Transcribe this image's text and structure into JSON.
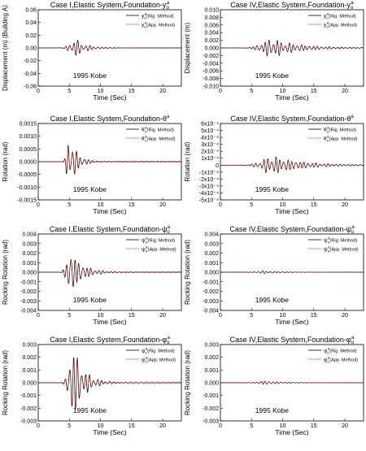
{
  "chart_data": [
    {
      "type": "line",
      "title": "Case I,Elastic System,Foundation-y",
      "title_sym": "o",
      "title_sup": "a",
      "xlabel": "Time (Sec)",
      "ylabel": "Displacement (m) (Building A)",
      "xlim": [
        0,
        23
      ],
      "ylim": [
        -0.06,
        0.06
      ],
      "xticks": [
        0,
        5,
        10,
        15,
        20
      ],
      "yticks": [
        -0.06,
        -0.04,
        -0.02,
        0.0,
        0.02,
        0.04,
        0.06
      ],
      "ytick_labels": [
        "-0.06",
        "-0.04",
        "-0.02",
        "0.00",
        "0.02",
        "0.04",
        "0.06"
      ],
      "annotation": "1995 Kobe",
      "legend": "top-right",
      "series": [
        {
          "name": "y",
          "sub": "(Rig. Method)",
          "style": "solid",
          "color": "#000000"
        },
        {
          "name": "y",
          "sub": "(App. Method)",
          "style": "dotted",
          "color": "#cc0000"
        }
      ],
      "approx_signal": {
        "onset": 3.5,
        "peak_time": 5.8,
        "peak": 0.012,
        "decay": 0.55
      }
    },
    {
      "type": "line",
      "title": "Case IV,Elastic System,Foundation-y",
      "title_sym": "o",
      "title_sup": "a",
      "xlabel": "Time (Sec)",
      "ylabel": "Displacement (m)",
      "xlim": [
        0,
        23
      ],
      "ylim": [
        -0.01,
        0.01
      ],
      "xticks": [
        0,
        5,
        10,
        15,
        20
      ],
      "yticks": [
        -0.01,
        -0.008,
        -0.006,
        -0.004,
        -0.002,
        0.0,
        0.002,
        0.004,
        0.006,
        0.008,
        0.01
      ],
      "ytick_labels": [
        "-0.010",
        "-0.008",
        "-0.006",
        "-0.004",
        "-0.002",
        "0.000",
        "0.002",
        "0.004",
        "0.006",
        "0.008",
        "0.010"
      ],
      "annotation": "1995 Kobe",
      "legend": "top-right",
      "series": [
        {
          "name": "y",
          "sub": "(Rig. Method)",
          "style": "solid",
          "color": "#000000"
        },
        {
          "name": "y",
          "sub": "(App. Method)",
          "style": "dotted",
          "color": "#cc0000"
        }
      ],
      "approx_signal": {
        "onset": 3.5,
        "peak_time": 8.0,
        "peak": 0.0021,
        "decay": 0.22
      }
    },
    {
      "type": "line",
      "title": "Case I,Elastic System,Foundation-θ",
      "title_sym": "",
      "title_sup": "a",
      "xlabel": "Time (Sec)",
      "ylabel": "Rotation (rad)",
      "xlim": [
        0,
        23
      ],
      "ylim": [
        -0.0015,
        0.0015
      ],
      "xticks": [
        0,
        5,
        10,
        15,
        20
      ],
      "yticks": [
        -0.0015,
        -0.001,
        -0.0005,
        0.0,
        0.0005,
        0.001,
        0.0015
      ],
      "ytick_labels": [
        "-0.0015",
        "-0.0010",
        "-0.0005",
        "0.0000",
        "0.0005",
        "0.0010",
        "0.0015"
      ],
      "annotation": "1995 Kobe",
      "legend": "top-right",
      "series": [
        {
          "name": "θ",
          "sub": "(Rig. Method)",
          "style": "solid",
          "color": "#000000"
        },
        {
          "name": "θ",
          "sub": "(App. Method)",
          "style": "dotted",
          "color": "#cc0000"
        }
      ],
      "approx_signal": {
        "onset": 4.0,
        "peak_time": 4.8,
        "peak": 0.00065,
        "decay": 0.8
      }
    },
    {
      "type": "line",
      "title": "Case IV,Elastic System,Foundation-θ",
      "title_sym": "",
      "title_sup": "a",
      "xlabel": "Time (Sec)",
      "ylabel": "Rotation (rad)",
      "xlim": [
        0,
        23
      ],
      "ylim": [
        -0.0005,
        0.0006
      ],
      "xticks": [
        0,
        5,
        10,
        15,
        20
      ],
      "yticks": [
        -0.0005,
        -0.0004,
        -0.0003,
        -0.0002,
        -0.0001,
        0.0,
        0.0001,
        0.0002,
        0.0003,
        0.0004,
        0.0005,
        0.0006
      ],
      "ytick_labels": [
        "-5x10⁻⁴",
        "-4x10⁻⁴",
        "-3x10⁻⁴",
        "-2x10⁻⁴",
        "-1x10⁻⁴",
        "0",
        "1x10⁻⁴",
        "2x10⁻⁴",
        "3x10⁻⁴",
        "4x10⁻⁴",
        "5x10⁻⁴",
        "6x10⁻⁴"
      ],
      "annotation": "1995 Kobe",
      "legend": "top-right",
      "series": [
        {
          "name": "θ",
          "sub": "(Rig. Method)",
          "style": "solid",
          "color": "#000000"
        },
        {
          "name": "θ",
          "sub": "(App. Method)",
          "style": "dotted",
          "color": "#cc0000"
        }
      ],
      "approx_signal": {
        "onset": 3.5,
        "peak_time": 8.0,
        "peak": 0.00012,
        "decay": 0.2
      }
    },
    {
      "type": "line",
      "title": "Case I,Elastic System,Foundation-ψ",
      "title_sym": "o",
      "title_sup": "a",
      "xlabel": "Time (Sec)",
      "ylabel": "Rocking Rotation (rad)",
      "xlim": [
        0,
        23
      ],
      "ylim": [
        -0.004,
        0.004
      ],
      "xticks": [
        0,
        5,
        10,
        15,
        20
      ],
      "yticks": [
        -0.004,
        -0.003,
        -0.002,
        -0.001,
        0.0,
        0.001,
        0.002,
        0.003,
        0.004
      ],
      "ytick_labels": [
        "-0.004",
        "-0.003",
        "-0.002",
        "-0.001",
        "0.000",
        "0.001",
        "0.002",
        "0.003",
        "0.004"
      ],
      "annotation": "1995 Kobe",
      "legend": "top-right",
      "series": [
        {
          "name": "ψ",
          "sub": "(Rig. Method)",
          "style": "solid",
          "color": "#000000"
        },
        {
          "name": "ψ",
          "sub": "(App. Method)",
          "style": "dotted",
          "color": "#cc0000"
        }
      ],
      "approx_signal": {
        "onset": 3.5,
        "peak_time": 5.0,
        "peak": 0.0015,
        "decay": 0.5
      }
    },
    {
      "type": "line",
      "title": "Case IV,Elastic System,Foundation-ψ",
      "title_sym": "o",
      "title_sup": "a",
      "xlabel": "Time (Sec)",
      "ylabel": "Rocking Rotation (rad)",
      "xlim": [
        0,
        23
      ],
      "ylim": [
        -0.004,
        0.004
      ],
      "xticks": [
        0,
        5,
        10,
        15,
        20
      ],
      "yticks": [
        -0.004,
        -0.003,
        -0.002,
        -0.001,
        0.0,
        0.001,
        0.002,
        0.003,
        0.004
      ],
      "ytick_labels": [
        "-0.004",
        "-0.003",
        "-0.002",
        "-0.001",
        "0.000",
        "0.001",
        "0.002",
        "0.003",
        "0.004"
      ],
      "annotation": "1995 Kobe",
      "legend": "top-right",
      "series": [
        {
          "name": "ψ",
          "sub": "(Rig. Method)",
          "style": "solid",
          "color": "#000000"
        },
        {
          "name": "ψ",
          "sub": "(App. Method)",
          "style": "dotted",
          "color": "#cc0000"
        }
      ],
      "approx_signal": {
        "onset": 3.5,
        "peak_time": 7.0,
        "peak": 0.00015,
        "decay": 0.3
      }
    },
    {
      "type": "line",
      "title": "Case I,Elastic System,Foundation-φ",
      "title_sym": "o",
      "title_sup": "a",
      "xlabel": "Time (Sec)",
      "ylabel": "Rocking Rotation (rad)",
      "xlim": [
        0,
        23
      ],
      "ylim": [
        -0.003,
        0.003
      ],
      "xticks": [
        0,
        5,
        10,
        15,
        20
      ],
      "yticks": [
        -0.003,
        -0.002,
        -0.001,
        0.0,
        0.001,
        0.002,
        0.003
      ],
      "ytick_labels": [
        "-0.003",
        "-0.002",
        "-0.001",
        "0.000",
        "0.001",
        "0.002",
        "0.003"
      ],
      "annotation": "1995 Kobe",
      "legend": "top-right",
      "series": [
        {
          "name": "φ",
          "sub": "(Rig. Method)",
          "style": "solid",
          "color": "#000000"
        },
        {
          "name": "φ",
          "sub": "(App. Method)",
          "style": "dotted",
          "color": "#cc0000"
        }
      ],
      "approx_signal": {
        "onset": 3.8,
        "peak_time": 5.5,
        "peak": 0.0021,
        "decay": 0.6
      }
    },
    {
      "type": "line",
      "title": "Case IV,Elastic System,Foundation-φ",
      "title_sym": "o",
      "title_sup": "a",
      "xlabel": "Time (Sec)",
      "ylabel": "Rocking Rotation (rad)",
      "xlim": [
        0,
        23
      ],
      "ylim": [
        -0.003,
        0.003
      ],
      "xticks": [
        0,
        5,
        10,
        15,
        20
      ],
      "yticks": [
        -0.003,
        -0.002,
        -0.001,
        0.0,
        0.001,
        0.002,
        0.003
      ],
      "ytick_labels": [
        "-0.003",
        "-0.002",
        "-0.001",
        "0.000",
        "0.001",
        "0.002",
        "0.003"
      ],
      "annotation": "1995 Kobe",
      "legend": "top-right",
      "series": [
        {
          "name": "φ",
          "sub": "(Rig. Method)",
          "style": "solid",
          "color": "#000000"
        },
        {
          "name": "φ",
          "sub": "(App. Method)",
          "style": "dotted",
          "color": "#cc0000"
        }
      ],
      "approx_signal": {
        "onset": 3.5,
        "peak_time": 7.0,
        "peak": 0.00012,
        "decay": 0.3
      }
    }
  ]
}
